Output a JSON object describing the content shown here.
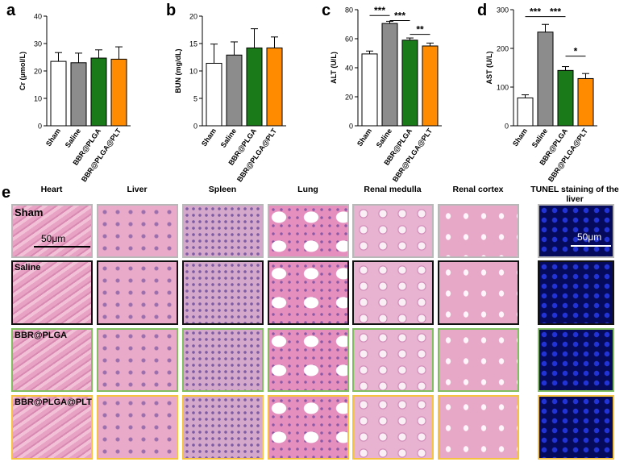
{
  "panel_letters": [
    "a",
    "b",
    "c",
    "d",
    "e"
  ],
  "colors": {
    "sham": "#ffffff",
    "saline": "#8c8c8c",
    "bbr_plga": "#1a7a1a",
    "bbr_plga_plt": "#ff8c00",
    "border_sham": "#b8b8b8",
    "border_saline": "#111111",
    "border_bbr_plga": "#7fbf5f",
    "border_bbr_plga_plt": "#f5c242"
  },
  "chart_data": [
    {
      "type": "bar",
      "categories": [
        "Sham",
        "Saline",
        "BBR@PLGA",
        "BBR@PLGA@PLT"
      ],
      "values": [
        23.5,
        23.0,
        24.7,
        24.3
      ],
      "errors": [
        3.2,
        3.5,
        3.0,
        4.5
      ],
      "ylabel": "Cr (μmol/L)",
      "ylim": [
        0,
        40
      ],
      "yticks": [
        0,
        10,
        20,
        30,
        40
      ],
      "significance": []
    },
    {
      "type": "bar",
      "categories": [
        "Sham",
        "Saline",
        "BBR@PLGA",
        "BBR@PLGA@PLT"
      ],
      "values": [
        11.4,
        12.9,
        14.2,
        14.2
      ],
      "errors": [
        3.5,
        2.4,
        3.5,
        2.0
      ],
      "ylabel": "BUN (mg/dL)",
      "ylim": [
        0,
        20
      ],
      "yticks": [
        0,
        5,
        10,
        15,
        20
      ],
      "significance": []
    },
    {
      "type": "bar",
      "categories": [
        "Sham",
        "Saline",
        "BBR@PLGA",
        "BBR@PLGA@PLT"
      ],
      "values": [
        49.5,
        70.5,
        59.0,
        55.0
      ],
      "errors": [
        2.0,
        1.5,
        1.5,
        2.0
      ],
      "ylabel": "ALT (U/L)",
      "ylim": [
        0,
        80
      ],
      "yticks": [
        0,
        20,
        40,
        60,
        80
      ],
      "significance": [
        {
          "from": 0,
          "to": 1,
          "label": "***",
          "y": 76
        },
        {
          "from": 1,
          "to": 2,
          "label": "***",
          "y": 72.5
        },
        {
          "from": 2,
          "to": 3,
          "label": "**",
          "y": 63
        }
      ]
    },
    {
      "type": "bar",
      "categories": [
        "Sham",
        "Saline",
        "BBR@PLGA",
        "BBR@PLGA@PLT"
      ],
      "values": [
        72,
        242,
        143,
        122
      ],
      "errors": [
        8,
        20,
        10,
        13
      ],
      "ylabel": "AST (U/L)",
      "ylim": [
        0,
        300
      ],
      "yticks": [
        0,
        100,
        200,
        300
      ],
      "significance": [
        {
          "from": 0,
          "to": 1,
          "label": "***",
          "y": 282
        },
        {
          "from": 1,
          "to": 2,
          "label": "***",
          "y": 282
        },
        {
          "from": 2,
          "to": 3,
          "label": "*",
          "y": 180
        }
      ]
    }
  ],
  "histology": {
    "columns": [
      "Heart",
      "Liver",
      "Spleen",
      "Lung",
      "Renal medulla",
      "Renal cortex"
    ],
    "tunel_title": "TUNEL staining of the liver",
    "rows": [
      "Sham",
      "Saline",
      "BBR@PLGA",
      "BBR@PLGA@PLT"
    ],
    "scale_bar_he": "50μm",
    "scale_bar_tunel": "50μm"
  }
}
